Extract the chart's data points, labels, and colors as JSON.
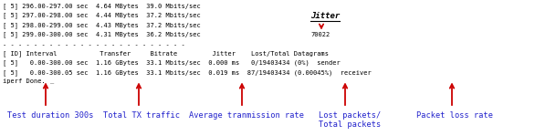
{
  "bg_color": "#ffffff",
  "text_color": "#000000",
  "arrow_color": "#cc0000",
  "annotation_color": "#2222cc",
  "mono_lines_top": [
    "[ 5] 296.00-297.00 sec  4.64 MBytes  39.0 Mbits/sec",
    "[ 5] 297.00-298.00 sec  4.44 MBytes  37.2 Mbits/sec",
    "[ 5] 298.00-299.00 sec  4.43 MBytes  37.2 Mbits/sec",
    "[ 5] 299.00-300.00 sec  4.31 MBytes  36.2 Mbits/sec"
  ],
  "separator": "- - - - - - - - - - - - - - - - - - - - - - - -",
  "header_line": "[ ID] Interval           Transfer     Bitrate         Jitter    Lost/Total Datagrams",
  "sender_line": "[ 5]   0.00-300.00 sec  1.16 GBytes  33.1 Mbits/sec  0.000 ms   0/19403434 (0%)  sender",
  "receiver_line": "[ 5]   0.00-300.05 sec  1.16 GBytes  33.1 Mbits/sec  0.019 ms  87/19403434 (0.00045%)  receiver",
  "iperf_done": "iperf Done.",
  "jitter_label": "Jitter",
  "jitter_value": "70022",
  "fontsize_mono": 5.0,
  "fontsize_annot": 6.2,
  "fontsize_jitter": 6.5
}
